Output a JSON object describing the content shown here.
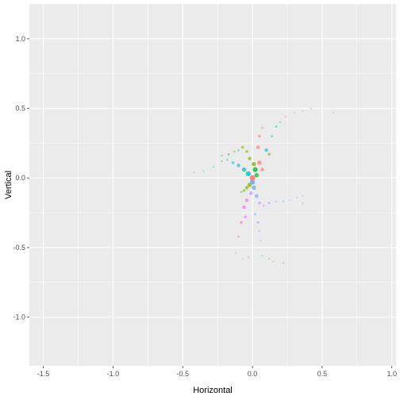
{
  "chart_data": {
    "type": "scatter",
    "title": "",
    "xlabel": "Horizontal",
    "ylabel": "Vertical",
    "xlim": [
      -1.6,
      1.03
    ],
    "ylim": [
      -1.35,
      1.25
    ],
    "x_ticks": [
      -1.5,
      -1.0,
      -0.5,
      0.0,
      0.5,
      1.0
    ],
    "x_tick_labels": [
      "-1.5",
      "-1.0",
      "-0.5",
      "0.0",
      "0.5",
      "1.0"
    ],
    "y_ticks": [
      -1.0,
      -0.5,
      0.0,
      0.5,
      1.0
    ],
    "y_tick_labels": [
      "-1.0",
      "-0.5",
      "0.0",
      "0.5",
      "1.0"
    ],
    "grid": true,
    "legend": "none",
    "panel_background": "#ebebeb",
    "grid_color": "#ffffff",
    "points": [
      {
        "x": 0.0,
        "y": 0.0,
        "size": 7,
        "color": "#F8766D"
      },
      {
        "x": 0.02,
        "y": 0.06,
        "size": 6,
        "color": "#00BA38"
      },
      {
        "x": 0.05,
        "y": 0.11,
        "size": 5,
        "color": "#F8766D"
      },
      {
        "x": 0.04,
        "y": 0.22,
        "size": 4,
        "color": "#F8766D"
      },
      {
        "x": 0.05,
        "y": 0.3,
        "size": 3,
        "color": "#F8766D"
      },
      {
        "x": 0.07,
        "y": 0.36,
        "size": 2,
        "color": "#F8766D"
      },
      {
        "x": 0.1,
        "y": 0.2,
        "size": 4,
        "color": "#00BFC4"
      },
      {
        "x": 0.12,
        "y": 0.17,
        "size": 3,
        "color": "#7CAE00"
      },
      {
        "x": 0.14,
        "y": 0.3,
        "size": 2,
        "color": "#00BFC4"
      },
      {
        "x": 0.17,
        "y": 0.37,
        "size": 2,
        "color": "#00BFC4"
      },
      {
        "x": 0.2,
        "y": 0.4,
        "size": 1.5,
        "color": "#00BFC4"
      },
      {
        "x": 0.24,
        "y": 0.44,
        "size": 1.2,
        "color": "#F8766D"
      },
      {
        "x": 0.3,
        "y": 0.47,
        "size": 1,
        "color": "#C77CFF"
      },
      {
        "x": 0.36,
        "y": 0.48,
        "size": 1,
        "color": "#F8766D"
      },
      {
        "x": 0.42,
        "y": 0.5,
        "size": 1,
        "color": "#00BFC4"
      },
      {
        "x": 0.58,
        "y": 0.47,
        "size": 1,
        "color": "#7CAE00"
      },
      {
        "x": 0.01,
        "y": 0.1,
        "size": 5,
        "color": "#7CAE00"
      },
      {
        "x": -0.02,
        "y": 0.14,
        "size": 4,
        "color": "#7CAE00"
      },
      {
        "x": -0.04,
        "y": 0.19,
        "size": 3,
        "color": "#7CAE00"
      },
      {
        "x": -0.07,
        "y": 0.22,
        "size": 3,
        "color": "#7CAE00"
      },
      {
        "x": -0.1,
        "y": 0.2,
        "size": 2,
        "color": "#00BFC4"
      },
      {
        "x": -0.13,
        "y": 0.19,
        "size": 2,
        "color": "#7CAE00"
      },
      {
        "x": -0.17,
        "y": 0.17,
        "size": 2,
        "color": "#00BA38"
      },
      {
        "x": -0.22,
        "y": 0.16,
        "size": 1.5,
        "color": "#00BA38"
      },
      {
        "x": -0.03,
        "y": 0.03,
        "size": 6,
        "color": "#00BFC4"
      },
      {
        "x": -0.06,
        "y": 0.06,
        "size": 5,
        "color": "#00BFC4"
      },
      {
        "x": -0.1,
        "y": 0.09,
        "size": 4,
        "color": "#00BFC4"
      },
      {
        "x": -0.14,
        "y": 0.11,
        "size": 3,
        "color": "#00BFC4"
      },
      {
        "x": -0.18,
        "y": 0.13,
        "size": 2,
        "color": "#00BFC4"
      },
      {
        "x": -0.22,
        "y": 0.12,
        "size": 1.5,
        "color": "#00BA38"
      },
      {
        "x": -0.28,
        "y": 0.08,
        "size": 1,
        "color": "#00BFC4"
      },
      {
        "x": -0.35,
        "y": 0.05,
        "size": 1,
        "color": "#00BFC4"
      },
      {
        "x": -0.42,
        "y": 0.04,
        "size": 1,
        "color": "#00BA38"
      },
      {
        "x": 0.03,
        "y": 0.02,
        "size": 5,
        "color": "#00BA38"
      },
      {
        "x": 0.07,
        "y": 0.06,
        "size": 4,
        "color": "#F8766D"
      },
      {
        "x": 0.0,
        "y": -0.03,
        "size": 6,
        "color": "#619CFF"
      },
      {
        "x": -0.02,
        "y": -0.05,
        "size": 5,
        "color": "#7CAE00"
      },
      {
        "x": -0.04,
        "y": -0.07,
        "size": 4,
        "color": "#7CAE00"
      },
      {
        "x": -0.06,
        "y": -0.09,
        "size": 3,
        "color": "#7CAE00"
      },
      {
        "x": -0.08,
        "y": -0.1,
        "size": 2,
        "color": "#7CAE00"
      },
      {
        "x": 0.01,
        "y": -0.07,
        "size": 5,
        "color": "#619CFF"
      },
      {
        "x": -0.01,
        "y": -0.11,
        "size": 4,
        "color": "#C77CFF"
      },
      {
        "x": 0.03,
        "y": -0.13,
        "size": 4,
        "color": "#619CFF"
      },
      {
        "x": 0.05,
        "y": -0.18,
        "size": 3,
        "color": "#C77CFF"
      },
      {
        "x": 0.08,
        "y": -0.2,
        "size": 2,
        "color": "#C77CFF"
      },
      {
        "x": 0.12,
        "y": -0.18,
        "size": 2,
        "color": "#619CFF"
      },
      {
        "x": 0.17,
        "y": -0.17,
        "size": 1.5,
        "color": "#C77CFF"
      },
      {
        "x": 0.22,
        "y": -0.17,
        "size": 1.5,
        "color": "#619CFF"
      },
      {
        "x": 0.27,
        "y": -0.16,
        "size": 1.2,
        "color": "#619CFF"
      },
      {
        "x": 0.32,
        "y": -0.14,
        "size": 1,
        "color": "#619CFF"
      },
      {
        "x": 0.36,
        "y": -0.13,
        "size": 1,
        "color": "#619CFF"
      },
      {
        "x": 0.36,
        "y": -0.18,
        "size": 1,
        "color": "#C77CFF"
      },
      {
        "x": -0.04,
        "y": -0.16,
        "size": 4,
        "color": "#F564E3"
      },
      {
        "x": -0.06,
        "y": -0.21,
        "size": 4,
        "color": "#F564E3"
      },
      {
        "x": -0.05,
        "y": -0.28,
        "size": 3,
        "color": "#C77CFF"
      },
      {
        "x": -0.08,
        "y": -0.32,
        "size": 3,
        "color": "#F564E3"
      },
      {
        "x": -0.1,
        "y": -0.42,
        "size": 2,
        "color": "#F564E3"
      },
      {
        "x": -0.12,
        "y": -0.54,
        "size": 1.5,
        "color": "#C77CFF"
      },
      {
        "x": -0.07,
        "y": -0.58,
        "size": 1,
        "color": "#C77CFF"
      },
      {
        "x": -0.03,
        "y": -0.57,
        "size": 1,
        "color": "#00BA38"
      },
      {
        "x": 0.02,
        "y": -0.26,
        "size": 2,
        "color": "#619CFF"
      },
      {
        "x": 0.04,
        "y": -0.32,
        "size": 2,
        "color": "#619CFF"
      },
      {
        "x": 0.05,
        "y": -0.38,
        "size": 1.5,
        "color": "#619CFF"
      },
      {
        "x": 0.06,
        "y": -0.45,
        "size": 1,
        "color": "#619CFF"
      },
      {
        "x": 0.07,
        "y": -0.56,
        "size": 1,
        "color": "#00BFC4"
      },
      {
        "x": 0.12,
        "y": -0.58,
        "size": 1,
        "color": "#7CAE00"
      },
      {
        "x": 0.15,
        "y": -0.6,
        "size": 1,
        "color": "#7CAE00"
      },
      {
        "x": 0.22,
        "y": -0.61,
        "size": 1,
        "color": "#00BA38"
      }
    ]
  }
}
